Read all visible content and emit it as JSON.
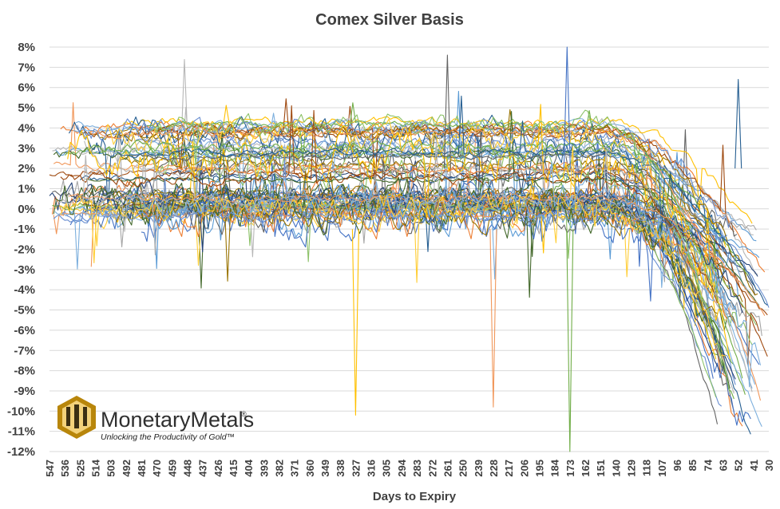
{
  "chart_data": {
    "type": "line",
    "title": "Comex Silver Basis",
    "xlabel": "Days to Expiry",
    "ylabel": "",
    "x_axis_reversed": true,
    "xlim": [
      547,
      30
    ],
    "ylim": [
      -12,
      8
    ],
    "y_unit": "%",
    "y_ticks": [
      "8%",
      "7%",
      "6%",
      "5%",
      "4%",
      "3%",
      "2%",
      "1%",
      "0%",
      "-1%",
      "-2%",
      "-3%",
      "-4%",
      "-5%",
      "-6%",
      "-7%",
      "-8%",
      "-9%",
      "-10%",
      "-11%",
      "-12%"
    ],
    "x_ticks": [
      "547",
      "536",
      "525",
      "514",
      "503",
      "492",
      "481",
      "470",
      "459",
      "448",
      "437",
      "426",
      "415",
      "404",
      "393",
      "382",
      "371",
      "360",
      "349",
      "338",
      "327",
      "316",
      "305",
      "294",
      "283",
      "272",
      "261",
      "250",
      "239",
      "228",
      "217",
      "206",
      "195",
      "184",
      "173",
      "162",
      "151",
      "140",
      "129",
      "118",
      "107",
      "96",
      "85",
      "74",
      "63",
      "52",
      "41",
      "30"
    ],
    "grid": "horizontal",
    "legend": "none",
    "palette": [
      "#4472c4",
      "#ed7d31",
      "#a5a5a5",
      "#ffc000",
      "#5b9bd5",
      "#70ad47",
      "#264478",
      "#9e480e",
      "#636363",
      "#997300",
      "#255e91",
      "#43682b",
      "#698ed0",
      "#f1975a",
      "#b7b7b7",
      "#ffcd33",
      "#7cafdd",
      "#8cc168"
    ],
    "series_summary": [
      {
        "upper_start": 4.3,
        "upper_mid": 4.2,
        "end": 2.5
      },
      {
        "upper_start": 3.2,
        "upper_mid": 3.8,
        "end": -1.5
      },
      {
        "upper_start": 1.8,
        "upper_mid": 3.0,
        "end": -3.0
      },
      {
        "upper_start": 0.6,
        "upper_mid": 0.8,
        "end": -2.0
      },
      {
        "upper_start": 0.2,
        "upper_mid": 0.5,
        "end": -6.0
      },
      {
        "upper_start": -0.3,
        "upper_mid": 0.3,
        "end": -12.0
      }
    ],
    "notable_extremes": [
      {
        "days": 327,
        "value": -10.2
      },
      {
        "days": 261,
        "value": 7.6
      },
      {
        "days": 228,
        "value": -9.8
      },
      {
        "days": 175,
        "value": 8.0
      },
      {
        "days": 173,
        "value": -12.0
      },
      {
        "days": 52,
        "value": 6.4
      }
    ]
  },
  "branding": {
    "name": "MonetaryMetals",
    "registered": "®",
    "tagline": "Unlocking the Productivity of Gold™"
  }
}
